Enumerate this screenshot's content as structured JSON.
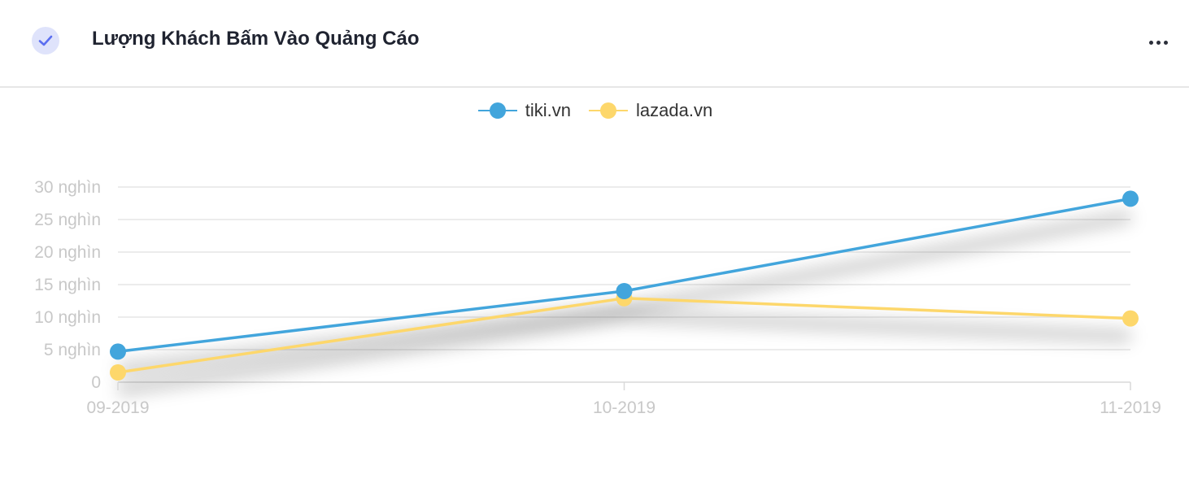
{
  "header": {
    "title": "Lượng Khách Bấm Vào Quảng Cáo",
    "check_icon": "check-icon",
    "more_icon": "more-horizontal-icon"
  },
  "colors": {
    "tiki": "#42a5dc",
    "lazada": "#fdd76b",
    "grid": "#e6e6e6",
    "axis_text": "#c8c8c8"
  },
  "chart_data": {
    "type": "line",
    "categories": [
      "09-2019",
      "10-2019",
      "11-2019"
    ],
    "series": [
      {
        "name": "tiki.vn",
        "color": "#42a5dc",
        "values": [
          4700,
          14000,
          28200
        ]
      },
      {
        "name": "lazada.vn",
        "color": "#fdd76b",
        "values": [
          1500,
          12900,
          9800
        ]
      }
    ],
    "y_ticks": [
      {
        "value": 0,
        "label": "0"
      },
      {
        "value": 5000,
        "label": "5 nghìn"
      },
      {
        "value": 10000,
        "label": "10 nghìn"
      },
      {
        "value": 15000,
        "label": "15 nghìn"
      },
      {
        "value": 20000,
        "label": "20 nghìn"
      },
      {
        "value": 25000,
        "label": "25 nghìn"
      },
      {
        "value": 30000,
        "label": "30 nghìn"
      }
    ],
    "ylim": [
      0,
      30000
    ],
    "grid": true,
    "legend_position": "top-center",
    "title": "",
    "xlabel": "",
    "ylabel": ""
  }
}
